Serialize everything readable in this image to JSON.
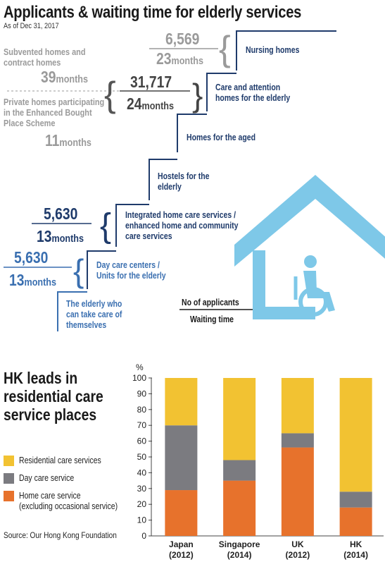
{
  "header": {
    "title": "Applicants & waiting time for elderly services",
    "as_of": "As of Dec 31, 2017"
  },
  "staircase": {
    "nursing": {
      "applicants": "6,569",
      "wait_num": "23",
      "wait_unit": "months",
      "label": "Nursing homes"
    },
    "subvented": {
      "label_line1": "Subvented homes and",
      "label_line2": "contract homes",
      "wait_num": "39",
      "wait_unit": "months"
    },
    "private": {
      "label_line1": "Private homes participating",
      "label_line2": "in the Enhanced Bought",
      "label_line3": "Place Scheme",
      "wait_num": "11",
      "wait_unit": "months"
    },
    "care_attention": {
      "applicants": "31,717",
      "wait_num": "24",
      "wait_unit": "months",
      "label_line1": "Care and attention",
      "label_line2": "homes for the elderly"
    },
    "homes_aged": {
      "label": "Homes for the aged"
    },
    "hostels": {
      "label_line1": "Hostels for the",
      "label_line2": "elderly"
    },
    "integrated": {
      "applicants": "5,630",
      "wait_num": "13",
      "wait_unit": "months",
      "label_line1": "Integrated home care services /",
      "label_line2": "enhanced home and community",
      "label_line3": "care services"
    },
    "day_care": {
      "applicants": "5,630",
      "wait_num": "13",
      "wait_unit": "months",
      "label_line1": "Day care centers /",
      "label_line2": "Units for the elderly"
    },
    "self_care": {
      "label_line1": "The elderly who",
      "label_line2": "can take care of",
      "label_line3": "themselves"
    },
    "key": {
      "top": "No of applicants",
      "bottom": "Waiting time"
    }
  },
  "section2": {
    "title_line1": "HK leads in",
    "title_line2": "residential care",
    "title_line3": "service places",
    "source": "Source: Our Hong Kong Foundation"
  },
  "colors": {
    "residential": "#f2c232",
    "day": "#7b7b80",
    "home": "#e7722c",
    "navy": "#1f3b6b",
    "light_blue": "#7ec8e8",
    "grey_text": "#9a9a9a"
  },
  "chart_data": {
    "type": "bar",
    "stacked": true,
    "ylabel": "%",
    "ylim": [
      0,
      100
    ],
    "yticks": [
      0,
      10,
      20,
      30,
      40,
      50,
      60,
      70,
      80,
      90,
      100
    ],
    "categories": [
      {
        "name": "Japan",
        "year": "(2012)"
      },
      {
        "name": "Singapore",
        "year": "(2014)"
      },
      {
        "name": "UK",
        "year": "(2012)"
      },
      {
        "name": "HK",
        "year": "(2014)"
      }
    ],
    "series": [
      {
        "name": "Home care service",
        "name_line2": "(excluding occasional service)",
        "color": "#e7722c",
        "values": [
          29,
          35,
          56,
          18
        ]
      },
      {
        "name": "Day care service",
        "color": "#7b7b80",
        "values": [
          41,
          13,
          9,
          10
        ]
      },
      {
        "name": "Residential care services",
        "color": "#f2c232",
        "values": [
          30,
          52,
          35,
          72
        ]
      }
    ]
  }
}
